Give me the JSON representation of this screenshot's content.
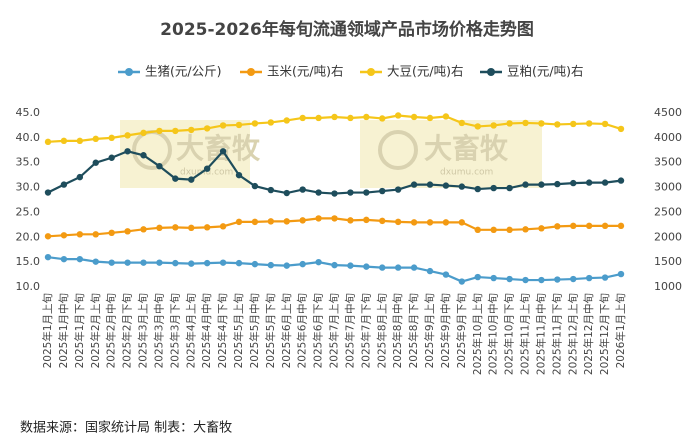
{
  "chart_data": {
    "type": "line",
    "title": "2025-2026年每旬流通领域产品市场价格走势图",
    "categories": [
      "2025年1月上旬",
      "2025年1月中旬",
      "2025年1月下旬",
      "2025年2月上旬",
      "2025年2月中旬",
      "2025年2月下旬",
      "2025年3月上旬",
      "2025年3月中旬",
      "2025年3月下旬",
      "2025年4月上旬",
      "2025年4月中旬",
      "2025年4月下旬",
      "2025年5月上旬",
      "2025年5月中旬",
      "2025年5月下旬",
      "2025年6月上旬",
      "2025年6月中旬",
      "2025年6月下旬",
      "2025年7月上旬",
      "2025年7月中旬",
      "2025年7月下旬",
      "2025年8月上旬",
      "2025年8月中旬",
      "2025年8月下旬",
      "2025年9月上旬",
      "2025年9月中旬",
      "2025年9月下旬",
      "2025年10月上旬",
      "2025年10月中旬",
      "2025年10月下旬",
      "2025年11月上旬",
      "2025年11月中旬",
      "2025年11月下旬",
      "2025年12月上旬",
      "2025年12月中旬",
      "2025年12月下旬",
      "2026年1月上旬"
    ],
    "series": [
      {
        "name": "生猪(元/公斤)",
        "color": "#4b9ccb",
        "values": [
          16.0,
          15.6,
          15.6,
          15.1,
          14.9,
          14.9,
          14.9,
          14.9,
          14.8,
          14.7,
          14.8,
          14.9,
          14.8,
          14.6,
          14.4,
          14.3,
          14.6,
          15.0,
          14.4,
          14.3,
          14.1,
          13.9,
          13.9,
          13.9,
          13.2,
          12.5,
          11.1,
          12.0,
          11.8,
          11.6,
          11.4,
          11.4,
          11.5,
          11.6,
          11.8,
          11.9,
          12.6
        ]
      },
      {
        "name": "玉米(元/吨)右",
        "color": "#f39a12",
        "axis": "y2",
        "values": [
          2020,
          2040,
          2060,
          2060,
          2090,
          2120,
          2160,
          2190,
          2200,
          2190,
          2200,
          2220,
          2310,
          2310,
          2320,
          2320,
          2340,
          2380,
          2380,
          2340,
          2350,
          2330,
          2310,
          2300,
          2300,
          2300,
          2300,
          2150,
          2150,
          2150,
          2160,
          2180,
          2220,
          2230,
          2230,
          2230,
          2230
        ]
      },
      {
        "name": "大豆(元/吨)右",
        "color": "#f5c61a",
        "axis": "y2",
        "values": [
          3920,
          3940,
          3940,
          3980,
          4000,
          4050,
          4100,
          4140,
          4140,
          4160,
          4190,
          4250,
          4260,
          4290,
          4310,
          4350,
          4400,
          4400,
          4420,
          4400,
          4420,
          4390,
          4450,
          4420,
          4400,
          4430,
          4300,
          4230,
          4250,
          4290,
          4300,
          4290,
          4270,
          4280,
          4290,
          4280,
          4180
        ]
      },
      {
        "name": "豆粕(元/吨)右",
        "color": "#1e4d5c",
        "axis": "y2",
        "values": [
          2900,
          3060,
          3210,
          3500,
          3600,
          3730,
          3650,
          3430,
          3180,
          3160,
          3380,
          3730,
          3250,
          3030,
          2950,
          2890,
          2960,
          2900,
          2880,
          2900,
          2900,
          2930,
          2960,
          3060,
          3060,
          3040,
          3020,
          2970,
          2990,
          2990,
          3060,
          3060,
          3070,
          3090,
          3100,
          3100,
          3140
        ]
      }
    ],
    "ylim": [
      10,
      45
    ],
    "yticks": [
      {
        "value": 10,
        "label": "10.0"
      },
      {
        "value": 15,
        "label": "15.0"
      },
      {
        "value": 20,
        "label": "20.0"
      },
      {
        "value": 25,
        "label": "25.0"
      },
      {
        "value": 30,
        "label": "30.0"
      },
      {
        "value": 35,
        "label": "35.0"
      },
      {
        "value": 40,
        "label": "40.0"
      },
      {
        "value": 45,
        "label": "45.0"
      }
    ],
    "y2lim": [
      1000,
      4500
    ],
    "y2ticks": [
      1000,
      1500,
      2000,
      2500,
      3000,
      3500,
      4000,
      4500
    ],
    "grid": false,
    "legend": "top",
    "watermark": "大畜牧",
    "watermark_url": "dxumu.com",
    "source": "数据来源：国家统计局  制表：大畜牧"
  }
}
